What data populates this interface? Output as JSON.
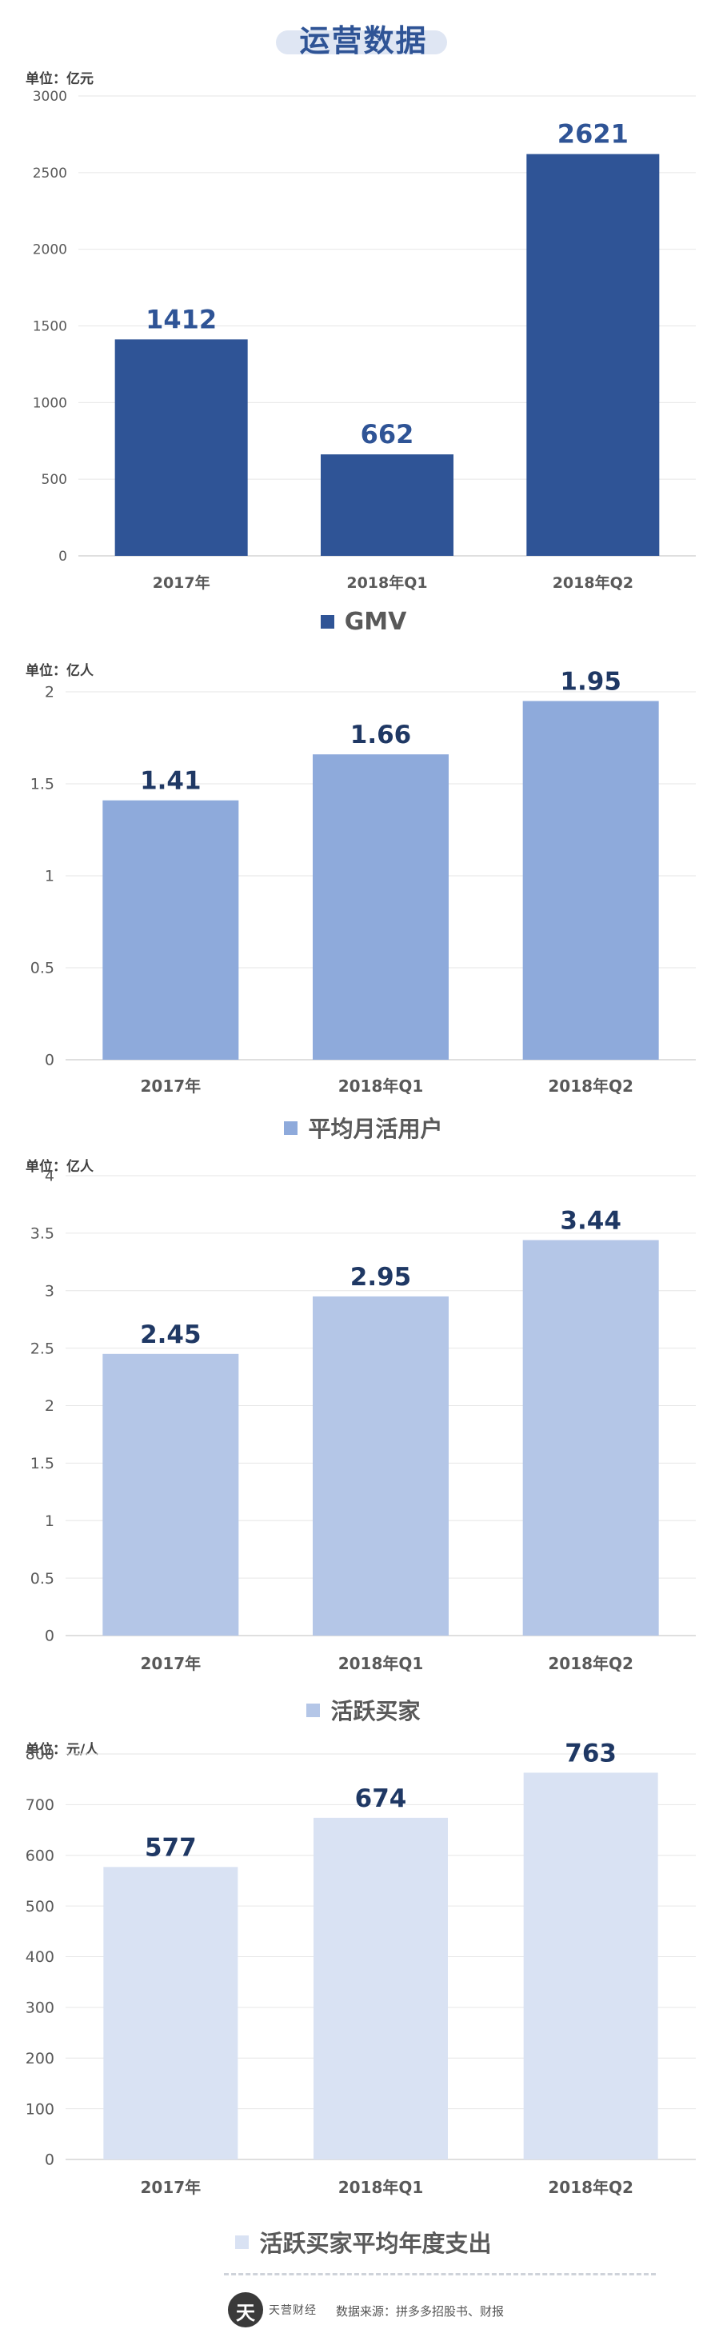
{
  "header": {
    "title": "运营数据"
  },
  "colors": {
    "gmv": "#2f5496",
    "mau": "#8eaadb",
    "buyers": "#b4c6e7",
    "spend": "#d9e2f3",
    "value_label": "#1f3864",
    "gmv_value_label": "#2f5496",
    "axis_text": "#595959",
    "grid": "#e6e6e6"
  },
  "chart_data": [
    {
      "type": "bar",
      "unit_label": "单位：亿元",
      "categories": [
        "2017年",
        "2018年Q1",
        "2018年Q2"
      ],
      "yticks": [
        "0",
        "500",
        "1000",
        "1500",
        "2000",
        "2500",
        "3000"
      ],
      "ylim": [
        0,
        3000
      ],
      "series": [
        {
          "name": "GMV",
          "values": [
            1412,
            662,
            2621
          ]
        }
      ],
      "value_labels": [
        "1412",
        "662",
        "2621"
      ],
      "legend": "bottom",
      "grid": true
    },
    {
      "type": "bar",
      "unit_label": "单位：亿人",
      "categories": [
        "2017年",
        "2018年Q1",
        "2018年Q2"
      ],
      "yticks": [
        "0",
        "0.5",
        "1",
        "1.5",
        "2"
      ],
      "ylim": [
        0,
        2
      ],
      "series": [
        {
          "name": "平均月活用户",
          "values": [
            1.41,
            1.66,
            1.95
          ]
        }
      ],
      "value_labels": [
        "1.41",
        "1.66",
        "1.95"
      ],
      "legend": "bottom",
      "grid": true
    },
    {
      "type": "bar",
      "unit_label": "单位：亿人",
      "categories": [
        "2017年",
        "2018年Q1",
        "2018年Q2"
      ],
      "yticks": [
        "0",
        "0.5",
        "1",
        "1.5",
        "2",
        "2.5",
        "3",
        "3.5",
        "4"
      ],
      "ylim": [
        0,
        4
      ],
      "series": [
        {
          "name": "活跃买家",
          "values": [
            2.45,
            2.95,
            3.44
          ]
        }
      ],
      "value_labels": [
        "2.45",
        "2.95",
        "3.44"
      ],
      "legend": "bottom",
      "grid": true
    },
    {
      "type": "bar",
      "unit_label": "单位：元/人",
      "categories": [
        "2017年",
        "2018年Q1",
        "2018年Q2"
      ],
      "yticks": [
        "0",
        "100",
        "200",
        "300",
        "400",
        "500",
        "600",
        "700",
        "800"
      ],
      "ylim": [
        0,
        800
      ],
      "series": [
        {
          "name": "活跃买家平均年度支出",
          "values": [
            577,
            674,
            763
          ]
        }
      ],
      "value_labels": [
        "577",
        "674",
        "763"
      ],
      "legend": "bottom",
      "grid": true
    }
  ],
  "footer": {
    "logo_glyph": "天",
    "brand": "天营财经",
    "source": "数据来源：拼多多招股书、财报"
  }
}
